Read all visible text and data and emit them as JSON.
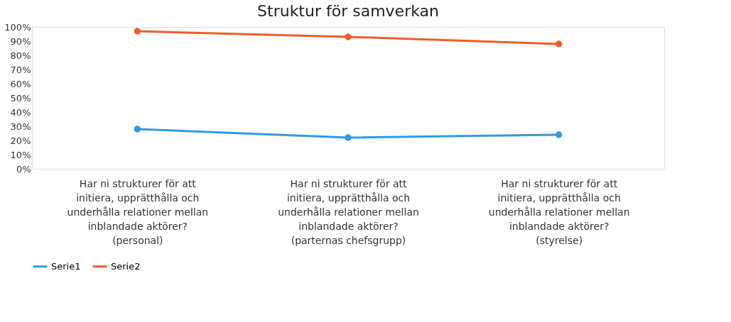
{
  "chart_data": {
    "type": "line",
    "title": "Struktur för samverkan",
    "categories": [
      "Har ni strukturer för att\ninitiera, upprätthålla och\nunderhålla relationer mellan\ninblandade aktörer?\n(personal)",
      "Har ni strukturer för att\ninitiera, upprätthålla och\nunderhålla relationer mellan\ninblandade aktörer?\n(parternas chefsgrupp)",
      "Har ni strukturer för att\ninitiera, upprätthålla och\nunderhålla relationer mellan\ninblandade aktörer?\n(styrelse)"
    ],
    "series": [
      {
        "name": "Serie1",
        "color": "#2f9be0",
        "values": [
          28,
          22,
          24
        ]
      },
      {
        "name": "Serie2",
        "color": "#f25c2a",
        "values": [
          97,
          93,
          88
        ]
      }
    ],
    "ylim": [
      0,
      100
    ],
    "yticks": [
      {
        "value": 0,
        "label": "0%"
      },
      {
        "value": 10,
        "label": "10%"
      },
      {
        "value": 20,
        "label": "20%"
      },
      {
        "value": 30,
        "label": "30%"
      },
      {
        "value": 40,
        "label": "40%"
      },
      {
        "value": 50,
        "label": "50%"
      },
      {
        "value": 60,
        "label": "60%"
      },
      {
        "value": 70,
        "label": "70%"
      },
      {
        "value": 80,
        "label": "80%"
      },
      {
        "value": 90,
        "label": "90%"
      },
      {
        "value": 100,
        "label": "100%"
      }
    ],
    "grid": false,
    "legend": "bottom",
    "marker": "circle",
    "line_style": "solid"
  }
}
